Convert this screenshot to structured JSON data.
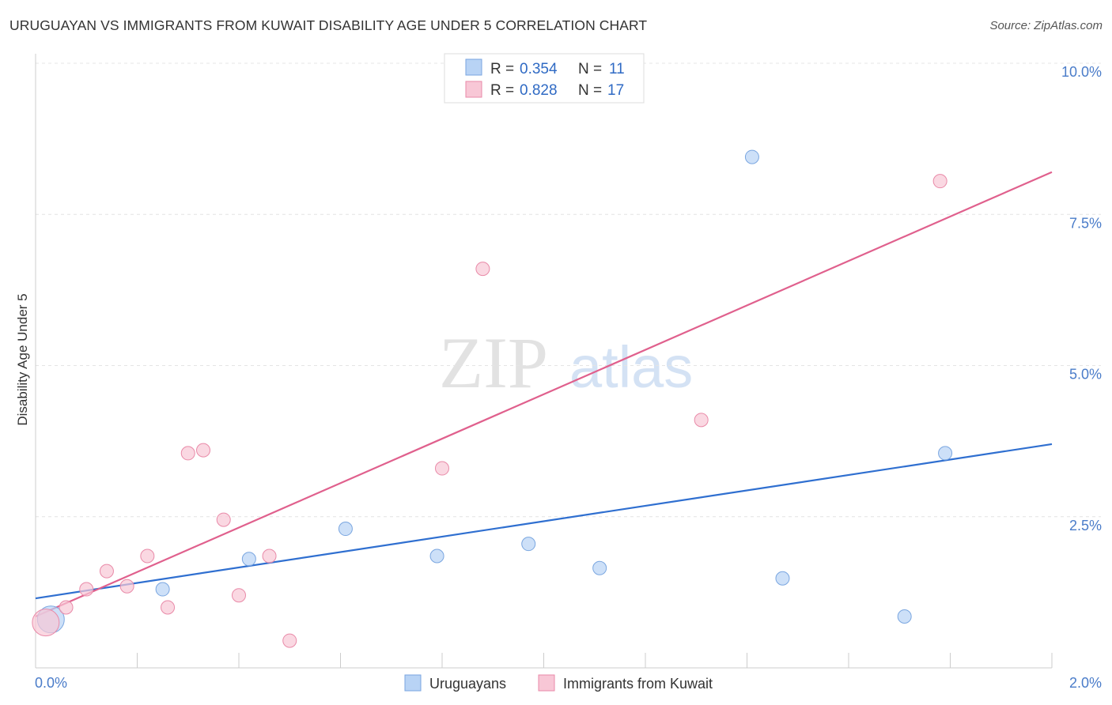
{
  "title": "URUGUAYAN VS IMMIGRANTS FROM KUWAIT DISABILITY AGE UNDER 5 CORRELATION CHART",
  "source": "Source: ZipAtlas.com",
  "watermark": {
    "zip": "ZIP",
    "atlas": "atlas"
  },
  "colors": {
    "blue_fill": "#b8d3f5",
    "blue_stroke": "#7aa6e0",
    "blue_line": "#2f6fd0",
    "pink_fill": "#f8c7d6",
    "pink_stroke": "#e98aa8",
    "pink_line": "#e0608d",
    "grid": "#e4e4e4",
    "tick_text": "#4a7cc9"
  },
  "legend": {
    "rows": [
      {
        "r_label": "R =",
        "r_value": "0.354",
        "n_label": "N =",
        "n_value": "11",
        "series": "blue"
      },
      {
        "r_label": "R =",
        "r_value": "0.828",
        "n_label": "N =",
        "n_value": "17",
        "series": "pink"
      }
    ]
  },
  "chart_data": {
    "type": "scatter",
    "title": "URUGUAYAN VS IMMIGRANTS FROM KUWAIT DISABILITY AGE UNDER 5 CORRELATION CHART",
    "xlabel": "",
    "ylabel": "Disability Age Under 5",
    "xlim": [
      0,
      2.0
    ],
    "ylim": [
      0,
      10.0
    ],
    "x_tick_labels": [
      "0.0%",
      "2.0%"
    ],
    "y_ticks": [
      2.5,
      5.0,
      7.5,
      10.0
    ],
    "y_tick_labels": [
      "2.5%",
      "5.0%",
      "7.5%",
      "10.0%"
    ],
    "series": [
      {
        "name": "Uruguayans",
        "color": "blue",
        "points": [
          {
            "x": 0.03,
            "y": 0.8,
            "size": "large"
          },
          {
            "x": 0.25,
            "y": 1.3
          },
          {
            "x": 0.42,
            "y": 1.8
          },
          {
            "x": 0.61,
            "y": 2.3
          },
          {
            "x": 0.79,
            "y": 1.85
          },
          {
            "x": 0.97,
            "y": 2.05
          },
          {
            "x": 1.11,
            "y": 1.65
          },
          {
            "x": 1.41,
            "y": 8.45
          },
          {
            "x": 1.47,
            "y": 1.48
          },
          {
            "x": 1.71,
            "y": 0.85
          },
          {
            "x": 1.79,
            "y": 3.55
          }
        ],
        "trend": {
          "x1": 0.0,
          "y1": 1.15,
          "x2": 2.0,
          "y2": 3.7
        }
      },
      {
        "name": "Immigrants from Kuwait",
        "color": "pink",
        "points": [
          {
            "x": 0.02,
            "y": 0.75,
            "size": "large"
          },
          {
            "x": 0.06,
            "y": 1.0
          },
          {
            "x": 0.1,
            "y": 1.3
          },
          {
            "x": 0.14,
            "y": 1.6
          },
          {
            "x": 0.18,
            "y": 1.35
          },
          {
            "x": 0.22,
            "y": 1.85
          },
          {
            "x": 0.26,
            "y": 1.0
          },
          {
            "x": 0.3,
            "y": 3.55
          },
          {
            "x": 0.33,
            "y": 3.6
          },
          {
            "x": 0.37,
            "y": 2.45
          },
          {
            "x": 0.4,
            "y": 1.2
          },
          {
            "x": 0.46,
            "y": 1.85
          },
          {
            "x": 0.5,
            "y": 0.45
          },
          {
            "x": 0.8,
            "y": 3.3
          },
          {
            "x": 0.88,
            "y": 6.6
          },
          {
            "x": 1.31,
            "y": 4.1
          },
          {
            "x": 1.78,
            "y": 8.05
          }
        ],
        "trend": {
          "x1": 0.0,
          "y1": 0.85,
          "x2": 2.0,
          "y2": 8.2
        }
      }
    ],
    "bottom_legend": [
      "Uruguayans",
      "Immigrants from Kuwait"
    ]
  }
}
